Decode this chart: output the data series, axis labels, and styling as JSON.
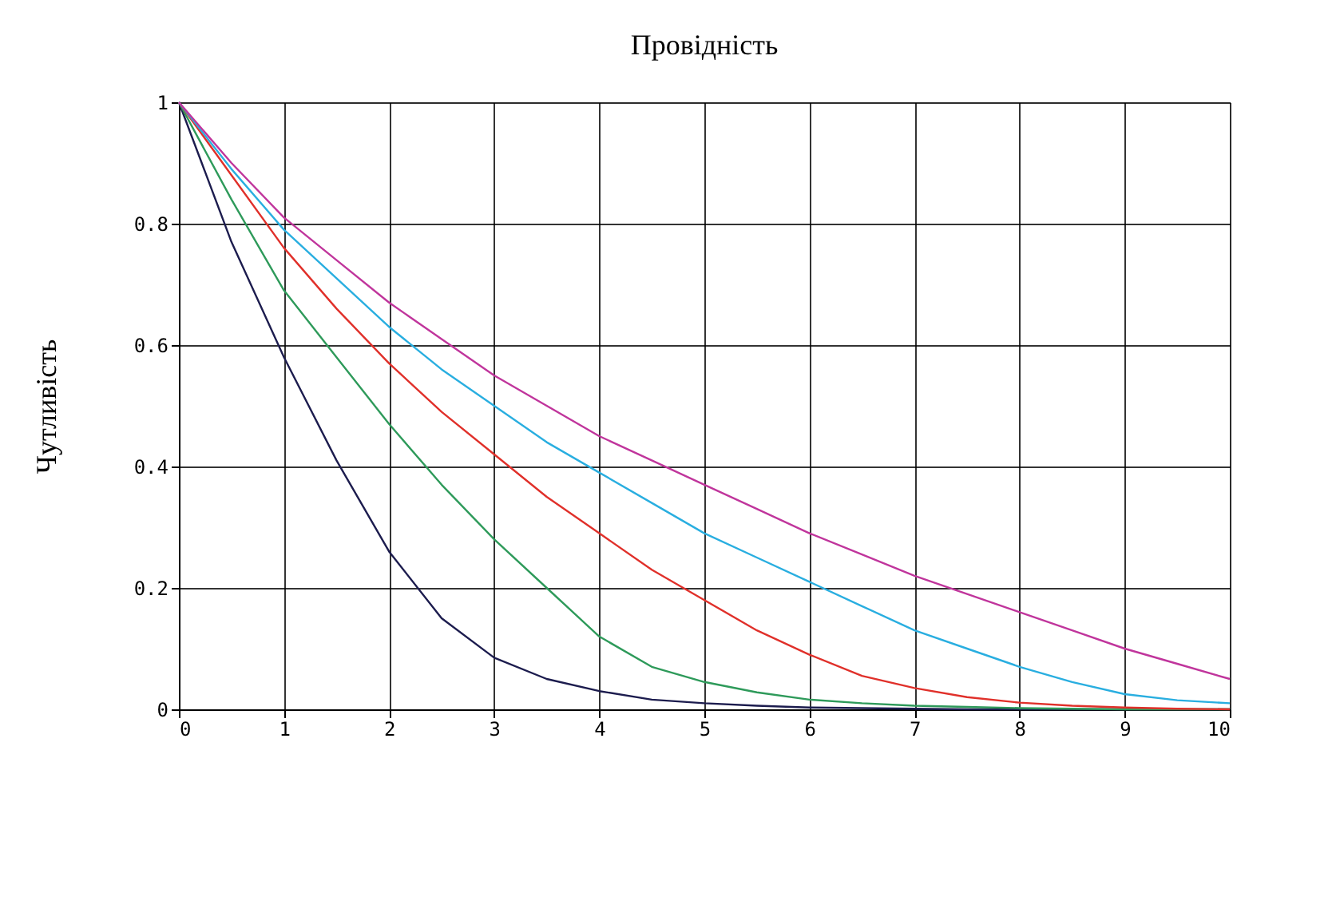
{
  "chart_data": {
    "type": "line",
    "title": "Провідність",
    "ylabel": "Чутливість",
    "xlim": [
      0,
      10
    ],
    "ylim": [
      0,
      1
    ],
    "xticks": [
      0,
      1,
      2,
      3,
      4,
      5,
      6,
      7,
      8,
      9,
      10
    ],
    "yticks": [
      0,
      0.2,
      0.4,
      0.6,
      0.8,
      1
    ],
    "grid": true,
    "legend": false,
    "line_style": "solid",
    "marker": "none",
    "x": [
      0,
      0.5,
      1,
      1.5,
      2,
      2.5,
      3,
      3.5,
      4,
      4.5,
      5,
      5.5,
      6,
      6.5,
      7,
      7.5,
      8,
      8.5,
      9,
      9.5,
      10
    ],
    "series": [
      {
        "color": "#1c1c4e",
        "values": [
          1,
          0.77,
          0.58,
          0.41,
          0.26,
          0.15,
          0.085,
          0.05,
          0.03,
          0.016,
          0.01,
          0.006,
          0.003,
          0.002,
          0.001,
          0,
          0,
          0,
          0,
          0,
          0
        ]
      },
      {
        "color": "#2e9a5a",
        "values": [
          1,
          0.84,
          0.69,
          0.58,
          0.47,
          0.37,
          0.28,
          0.2,
          0.12,
          0.07,
          0.045,
          0.028,
          0.016,
          0.01,
          0.006,
          0.004,
          0.002,
          0.001,
          0,
          0,
          0
        ]
      },
      {
        "color": "#e0302a",
        "values": [
          1,
          0.88,
          0.76,
          0.66,
          0.57,
          0.49,
          0.42,
          0.35,
          0.29,
          0.23,
          0.18,
          0.13,
          0.09,
          0.055,
          0.035,
          0.02,
          0.011,
          0.006,
          0.003,
          0.001,
          0
        ]
      },
      {
        "color": "#29aee0",
        "values": [
          1,
          0.89,
          0.79,
          0.71,
          0.63,
          0.56,
          0.5,
          0.44,
          0.39,
          0.34,
          0.29,
          0.25,
          0.21,
          0.17,
          0.13,
          0.1,
          0.07,
          0.045,
          0.025,
          0.015,
          0.01
        ]
      },
      {
        "color": "#c0359c",
        "values": [
          1,
          0.9,
          0.81,
          0.74,
          0.67,
          0.61,
          0.55,
          0.5,
          0.45,
          0.41,
          0.37,
          0.33,
          0.29,
          0.255,
          0.22,
          0.19,
          0.16,
          0.13,
          0.1,
          0.075,
          0.05
        ]
      }
    ]
  }
}
